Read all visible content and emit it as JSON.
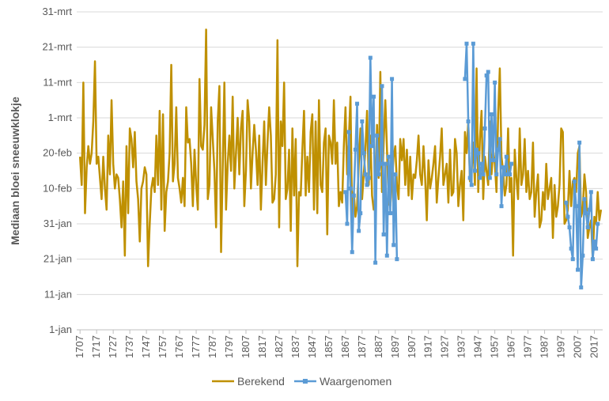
{
  "chart_data": {
    "type": "line",
    "y_label": "Mediaan bloei sneeuwklokje",
    "ylim": [
      1,
      91
    ],
    "yticks": [
      {
        "value": 1,
        "label": "1-jan"
      },
      {
        "value": 11,
        "label": "11-jan"
      },
      {
        "value": 21,
        "label": "21-jan"
      },
      {
        "value": 31,
        "label": "31-jan"
      },
      {
        "value": 41,
        "label": "10-feb"
      },
      {
        "value": 51,
        "label": "20-feb"
      },
      {
        "value": 61,
        "label": "1-mrt"
      },
      {
        "value": 71,
        "label": "11-mrt"
      },
      {
        "value": 81,
        "label": "21-mrt"
      },
      {
        "value": 91,
        "label": "31-mrt"
      }
    ],
    "xlim": [
      1705,
      2022
    ],
    "xticks": [
      1707,
      1717,
      1727,
      1737,
      1747,
      1757,
      1767,
      1777,
      1787,
      1797,
      1807,
      1817,
      1827,
      1837,
      1847,
      1857,
      1867,
      1877,
      1887,
      1897,
      1907,
      1917,
      1927,
      1937,
      1947,
      1957,
      1967,
      1977,
      1987,
      1997,
      2007,
      2017
    ],
    "grid": true,
    "legend": "bottom",
    "x": [
      1707,
      1708,
      1709,
      1710,
      1711,
      1712,
      1713,
      1714,
      1715,
      1716,
      1717,
      1718,
      1719,
      1720,
      1721,
      1722,
      1723,
      1724,
      1725,
      1726,
      1727,
      1728,
      1729,
      1730,
      1731,
      1732,
      1733,
      1734,
      1735,
      1736,
      1737,
      1738,
      1739,
      1740,
      1741,
      1742,
      1743,
      1744,
      1745,
      1746,
      1747,
      1748,
      1749,
      1750,
      1751,
      1752,
      1753,
      1754,
      1755,
      1756,
      1757,
      1758,
      1759,
      1760,
      1761,
      1762,
      1763,
      1764,
      1765,
      1766,
      1767,
      1768,
      1769,
      1770,
      1771,
      1772,
      1773,
      1774,
      1775,
      1776,
      1777,
      1778,
      1779,
      1780,
      1781,
      1782,
      1783,
      1784,
      1785,
      1786,
      1787,
      1788,
      1789,
      1790,
      1791,
      1792,
      1793,
      1794,
      1795,
      1796,
      1797,
      1798,
      1799,
      1800,
      1801,
      1802,
      1803,
      1804,
      1805,
      1806,
      1807,
      1808,
      1809,
      1810,
      1811,
      1812,
      1813,
      1814,
      1815,
      1816,
      1817,
      1818,
      1819,
      1820,
      1821,
      1822,
      1823,
      1824,
      1825,
      1826,
      1827,
      1828,
      1829,
      1830,
      1831,
      1832,
      1833,
      1834,
      1835,
      1836,
      1837,
      1838,
      1839,
      1840,
      1841,
      1842,
      1843,
      1844,
      1845,
      1846,
      1847,
      1848,
      1849,
      1850,
      1851,
      1852,
      1853,
      1854,
      1855,
      1856,
      1857,
      1858,
      1859,
      1860,
      1861,
      1862,
      1863,
      1864,
      1865,
      1866,
      1867,
      1868,
      1869,
      1870,
      1871,
      1872,
      1873,
      1874,
      1875,
      1876,
      1877,
      1878,
      1879,
      1880,
      1881,
      1882,
      1883,
      1884,
      1885,
      1886,
      1887,
      1888,
      1889,
      1890,
      1891,
      1892,
      1893,
      1894,
      1895,
      1896,
      1897,
      1898,
      1899,
      1900,
      1901,
      1902,
      1903,
      1904,
      1905,
      1906,
      1907,
      1908,
      1909,
      1910,
      1911,
      1912,
      1913,
      1914,
      1915,
      1916,
      1917,
      1918,
      1919,
      1920,
      1921,
      1922,
      1923,
      1924,
      1925,
      1926,
      1927,
      1928,
      1929,
      1930,
      1931,
      1932,
      1933,
      1934,
      1935,
      1936,
      1937,
      1938,
      1939,
      1940,
      1941,
      1942,
      1943,
      1944,
      1945,
      1946,
      1947,
      1948,
      1949,
      1950,
      1951,
      1952,
      1953,
      1954,
      1955,
      1956,
      1957,
      1958,
      1959,
      1960,
      1961,
      1962,
      1963,
      1964,
      1965,
      1966,
      1967,
      1968,
      1969,
      1970,
      1971,
      1972,
      1973,
      1974,
      1975,
      1976,
      1977,
      1978,
      1979,
      1980,
      1981,
      1982,
      1983,
      1984,
      1985,
      1986,
      1987,
      1988,
      1989,
      1990,
      1991,
      1992,
      1993,
      1994,
      1995,
      1996,
      1997,
      1998,
      1999,
      2000,
      2001,
      2002,
      2003,
      2004,
      2005,
      2006,
      2007,
      2008,
      2009,
      2010,
      2011,
      2012,
      2013,
      2014,
      2015,
      2016,
      2017,
      2018,
      2019,
      2020,
      2021
    ],
    "series": [
      {
        "name": "Berekend",
        "color": "#bf9000",
        "values": [
          50,
          42,
          71,
          34,
          47,
          53,
          48,
          51,
          60,
          77,
          48,
          50,
          44,
          38,
          50,
          41,
          35,
          56,
          45,
          66,
          48,
          41,
          45,
          44,
          38,
          30,
          43,
          22,
          53,
          34,
          58,
          55,
          47,
          57,
          43,
          38,
          26,
          41,
          43,
          47,
          45,
          19,
          31,
          41,
          44,
          40,
          56,
          42,
          63,
          35,
          62,
          29,
          40,
          43,
          51,
          76,
          43,
          48,
          64,
          44,
          41,
          37,
          44,
          36,
          64,
          54,
          55,
          48,
          36,
          52,
          42,
          35,
          72,
          53,
          52,
          59,
          86,
          38,
          42,
          64,
          55,
          46,
          30,
          60,
          70,
          23,
          47,
          71,
          35,
          48,
          56,
          46,
          67,
          41,
          51,
          61,
          45,
          58,
          63,
          36,
          46,
          66,
          60,
          41,
          51,
          59,
          52,
          42,
          56,
          35,
          48,
          60,
          42,
          54,
          64,
          56,
          37,
          38,
          45,
          83,
          30,
          60,
          53,
          71,
          38,
          41,
          52,
          29,
          58,
          39,
          55,
          19,
          40,
          39,
          52,
          63,
          39,
          50,
          40,
          57,
          62,
          35,
          60,
          34,
          66,
          42,
          40,
          54,
          58,
          28,
          56,
          54,
          48,
          66,
          48,
          54,
          36,
          40,
          37,
          53,
          64,
          45,
          55,
          67,
          31,
          40,
          33,
          36,
          48,
          58,
          38,
          45,
          52,
          63,
          42,
          56,
          39,
          35,
          37,
          59,
          44,
          74,
          40,
          54,
          66,
          52,
          37,
          36,
          43,
          50,
          53,
          42,
          38,
          55,
          49,
          55,
          42,
          52,
          39,
          50,
          38,
          45,
          44,
          49,
          56,
          45,
          42,
          53,
          44,
          32,
          49,
          41,
          44,
          48,
          53,
          37,
          44,
          50,
          58,
          42,
          45,
          48,
          37,
          52,
          39,
          40,
          55,
          51,
          36,
          42,
          46,
          32,
          57,
          51,
          60,
          43,
          46,
          54,
          42,
          75,
          40,
          55,
          63,
          38,
          50,
          46,
          42,
          60,
          45,
          52,
          48,
          40,
          62,
          75,
          50,
          46,
          39,
          42,
          58,
          40,
          44,
          22,
          52,
          44,
          38,
          58,
          42,
          45,
          55,
          40,
          46,
          38,
          40,
          54,
          33,
          40,
          45,
          30,
          32,
          40,
          35,
          48,
          38,
          41,
          44,
          27,
          42,
          33,
          36,
          42,
          58,
          57,
          31,
          32,
          35,
          46,
          36,
          43,
          44,
          40,
          51,
          53,
          33,
          35,
          45,
          40,
          27,
          30,
          32,
          21,
          33,
          31,
          40,
          32,
          35
        ]
      },
      {
        "name": "Waargenomen",
        "color": "#5b9bd5",
        "marker": "square",
        "values": [
          null,
          null,
          null,
          null,
          null,
          null,
          null,
          null,
          null,
          null,
          null,
          null,
          null,
          null,
          null,
          null,
          null,
          null,
          null,
          null,
          null,
          null,
          null,
          null,
          null,
          null,
          null,
          null,
          null,
          null,
          null,
          null,
          null,
          null,
          null,
          null,
          null,
          null,
          null,
          null,
          null,
          null,
          null,
          null,
          null,
          null,
          null,
          null,
          null,
          null,
          null,
          null,
          null,
          null,
          null,
          null,
          null,
          null,
          null,
          null,
          null,
          null,
          null,
          null,
          null,
          null,
          null,
          null,
          null,
          null,
          null,
          null,
          null,
          null,
          null,
          null,
          null,
          null,
          null,
          null,
          null,
          null,
          null,
          null,
          null,
          null,
          null,
          null,
          null,
          null,
          null,
          null,
          null,
          null,
          null,
          null,
          null,
          null,
          null,
          null,
          null,
          null,
          null,
          null,
          null,
          null,
          null,
          null,
          null,
          null,
          null,
          null,
          null,
          null,
          null,
          null,
          null,
          null,
          null,
          null,
          null,
          null,
          null,
          null,
          null,
          null,
          null,
          null,
          null,
          null,
          null,
          null,
          null,
          null,
          null,
          null,
          null,
          null,
          null,
          null,
          null,
          null,
          null,
          null,
          null,
          null,
          null,
          null,
          null,
          null,
          null,
          null,
          null,
          null,
          null,
          null,
          null,
          null,
          null,
          null,
          40,
          31,
          57,
          41,
          23,
          39,
          52,
          65,
          29,
          34,
          60,
          51,
          45,
          42,
          44,
          78,
          53,
          67,
          20,
          56,
          45,
          48,
          70,
          28,
          48,
          22,
          50,
          34,
          72,
          25,
          45,
          21,
          null,
          null,
          null,
          null,
          null,
          null,
          null,
          null,
          null,
          null,
          null,
          null,
          null,
          null,
          null,
          null,
          null,
          null,
          null,
          null,
          null,
          null,
          null,
          null,
          null,
          null,
          null,
          null,
          null,
          null,
          null,
          null,
          null,
          null,
          null,
          null,
          null,
          null,
          null,
          null,
          72,
          82,
          60,
          44,
          42,
          82,
          46,
          52,
          51,
          44,
          48,
          45,
          58,
          73,
          74,
          44,
          62,
          49,
          71,
          45,
          52,
          55,
          36,
          47,
          45,
          50,
          45,
          45,
          48,
          null,
          null,
          null,
          null,
          null,
          null,
          null,
          null,
          null,
          null,
          null,
          null,
          null,
          null,
          null,
          null,
          null,
          null,
          null,
          null,
          null,
          null,
          null,
          null,
          null,
          null,
          null,
          null,
          null,
          null,
          null,
          null,
          37,
          33,
          30,
          24,
          21,
          43,
          36,
          18,
          54,
          13,
          22,
          38,
          34,
          30,
          35,
          40,
          21,
          26,
          24,
          31,
          null,
          null
        ]
      }
    ]
  }
}
